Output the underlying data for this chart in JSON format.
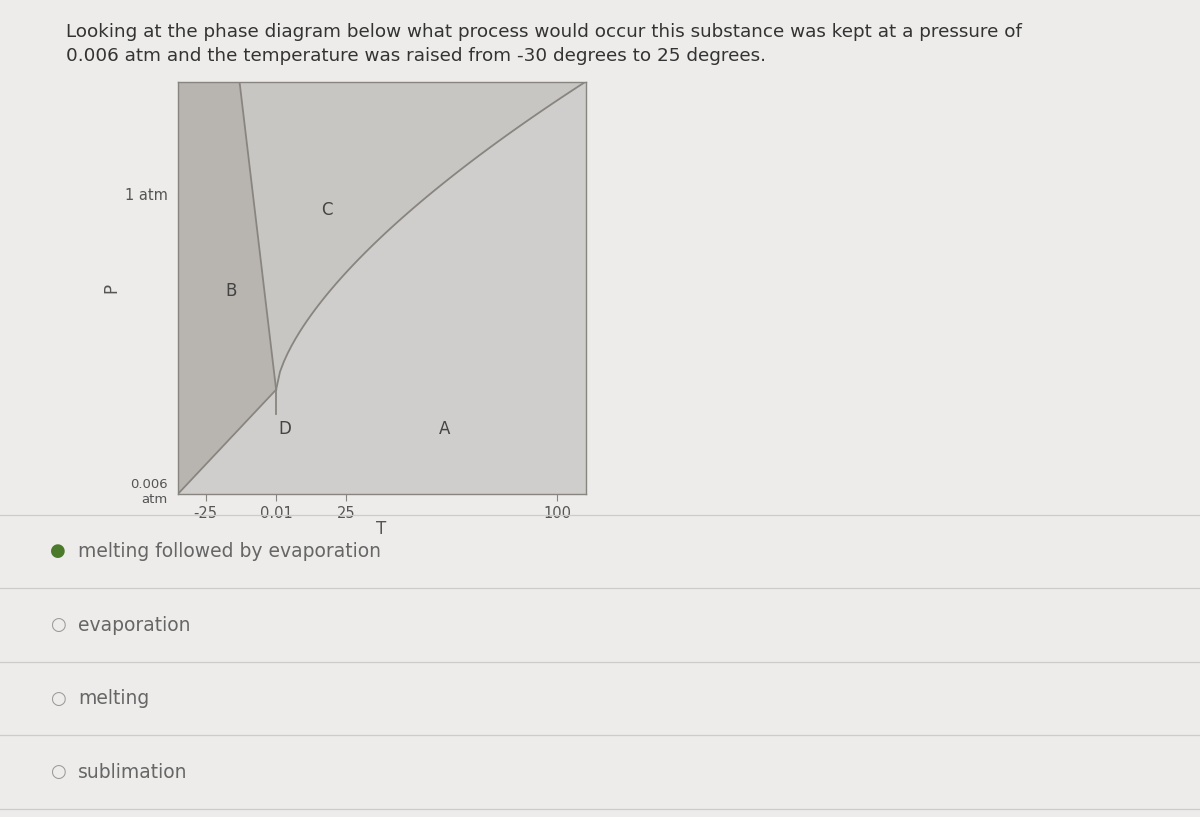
{
  "title_line1": "Looking at the phase diagram below what process would occur this substance was kept at a pressure of",
  "title_line2": "0.006 atm and the temperature was raised from -30 degrees to 25 degrees.",
  "bg_color": "#edecea",
  "plot_bg_color": "#cccac6",
  "xlabel": "T",
  "ylabel": "P",
  "x_ticks": [
    -25,
    0.01,
    25,
    100
  ],
  "x_tick_labels": [
    "-25",
    "0.01",
    "25",
    "100"
  ],
  "y_label_1atm": "1 atm",
  "y_label_006atm": "0.006\natm",
  "solid_color": "#b8b5b0",
  "liquid_color": "#c8c6c2",
  "gas_color": "#d0cecc",
  "line_color": "#888580",
  "border_color": "#888580",
  "label_color": "#444444",
  "tick_color": "#555555",
  "title_color": "#333333",
  "options": [
    {
      "text": "melting followed by evaporation",
      "selected": true
    },
    {
      "text": "evaporation",
      "selected": false
    },
    {
      "text": "melting",
      "selected": false
    },
    {
      "text": "sublimation",
      "selected": false
    }
  ],
  "selected_color": "#4a7a2a",
  "unselected_color": "#999999",
  "option_text_color": "#666666",
  "separator_color": "#cccccc"
}
